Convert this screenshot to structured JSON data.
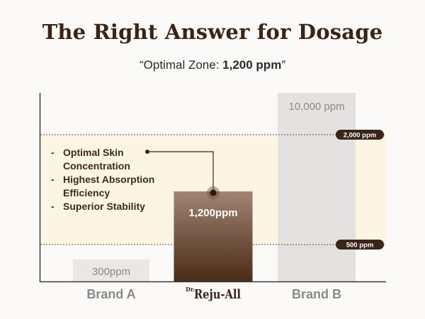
{
  "title": "The Right Answer for Dosage",
  "subtitle": {
    "prefix": "“Optimal Zone: ",
    "value": "1,200 ppm",
    "suffix": "”"
  },
  "colors": {
    "zone_fill": "#fcf5e4",
    "axis": "#3a3a3a",
    "brand_a_bar": "#e9e8e6",
    "reju_bar_top": "#a08472",
    "reju_bar_bottom": "#4a2b17",
    "brand_b_bar": "#e3e2e0",
    "threshold_badge": "#3b2518",
    "label_gray": "#8a8a8a",
    "brand_dark": "#3b2518"
  },
  "chart_data": {
    "type": "bar",
    "categories": [
      "Brand A",
      "Reju-All",
      "Brand B"
    ],
    "values": [
      300,
      1200,
      10000
    ],
    "value_labels": [
      "300ppm",
      "1,200ppm",
      "10,000 ppm"
    ],
    "brand_logo_prefix": "Dr.",
    "thresholds": [
      {
        "value": 2000,
        "label": "2,000 ppm"
      },
      {
        "value": 500,
        "label": "500 ppm"
      }
    ],
    "optimal_zone": [
      500,
      2000
    ],
    "callout_items": [
      "Optimal Skin Concentration",
      "Highest Absorption Efficiency",
      "Superior Stability"
    ]
  }
}
